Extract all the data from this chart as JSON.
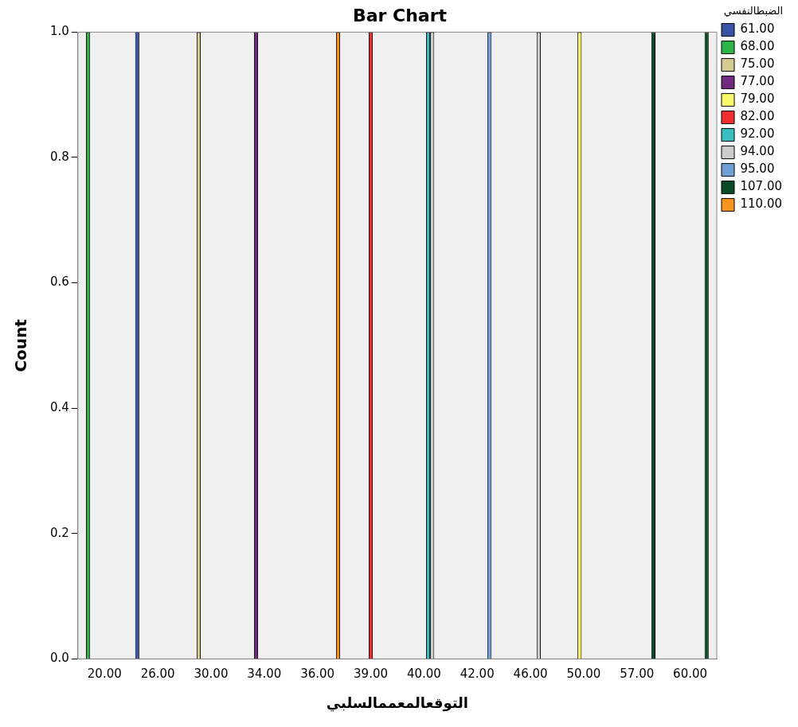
{
  "chart_data": {
    "type": "bar",
    "title": "Bar Chart",
    "xlabel": "التوقعالمعممالسلبي",
    "ylabel": "Count",
    "legend_title": "الضبطالنفسي",
    "categories": [
      "20.00",
      "26.00",
      "30.00",
      "34.00",
      "36.00",
      "39.00",
      "40.00",
      "42.00",
      "46.00",
      "50.00",
      "57.00",
      "60.00"
    ],
    "series": [
      {
        "name": "61.00",
        "color": "#3a52a4",
        "values": [
          null,
          1,
          null,
          null,
          null,
          null,
          null,
          null,
          null,
          null,
          null,
          null
        ]
      },
      {
        "name": "68.00",
        "color": "#2cb34a",
        "values": [
          1,
          null,
          null,
          null,
          null,
          null,
          null,
          null,
          null,
          null,
          null,
          null
        ]
      },
      {
        "name": "75.00",
        "color": "#d4cc92",
        "values": [
          null,
          null,
          1,
          null,
          null,
          null,
          null,
          null,
          null,
          null,
          null,
          null
        ]
      },
      {
        "name": "77.00",
        "color": "#702a7e",
        "values": [
          null,
          null,
          null,
          1,
          null,
          null,
          null,
          null,
          null,
          null,
          null,
          null
        ]
      },
      {
        "name": "79.00",
        "color": "#fbf86a",
        "values": [
          null,
          null,
          null,
          null,
          null,
          null,
          null,
          null,
          null,
          1,
          null,
          null
        ]
      },
      {
        "name": "82.00",
        "color": "#ee2e2f",
        "values": [
          null,
          null,
          null,
          null,
          null,
          1,
          null,
          null,
          null,
          null,
          null,
          null
        ]
      },
      {
        "name": "92.00",
        "color": "#3bbec0",
        "values": [
          null,
          null,
          null,
          null,
          null,
          null,
          1,
          null,
          null,
          null,
          null,
          null
        ]
      },
      {
        "name": "94.00",
        "color": "#cdcdcd",
        "values": [
          null,
          null,
          null,
          null,
          null,
          null,
          1,
          null,
          1,
          null,
          null,
          null
        ]
      },
      {
        "name": "95.00",
        "color": "#6f9fd4",
        "values": [
          null,
          null,
          null,
          null,
          null,
          null,
          null,
          1,
          null,
          null,
          null,
          null
        ]
      },
      {
        "name": "107.00",
        "color": "#0b4a26",
        "values": [
          null,
          null,
          null,
          null,
          null,
          null,
          null,
          null,
          null,
          null,
          1,
          1
        ]
      },
      {
        "name": "110.00",
        "color": "#f7941d",
        "values": [
          null,
          null,
          null,
          null,
          1,
          null,
          null,
          null,
          null,
          null,
          null,
          null
        ]
      }
    ],
    "ylim": [
      0,
      1.0
    ],
    "yticks": [
      {
        "value": 0,
        "label": "0.0"
      },
      {
        "value": 0.2,
        "label": "0.2"
      },
      {
        "value": 0.4,
        "label": "0.4"
      },
      {
        "value": 0.6,
        "label": "0.6"
      },
      {
        "value": 0.8,
        "label": "0.8"
      },
      {
        "value": 1,
        "label": "1.0"
      }
    ],
    "grid": false,
    "legend": "right"
  }
}
